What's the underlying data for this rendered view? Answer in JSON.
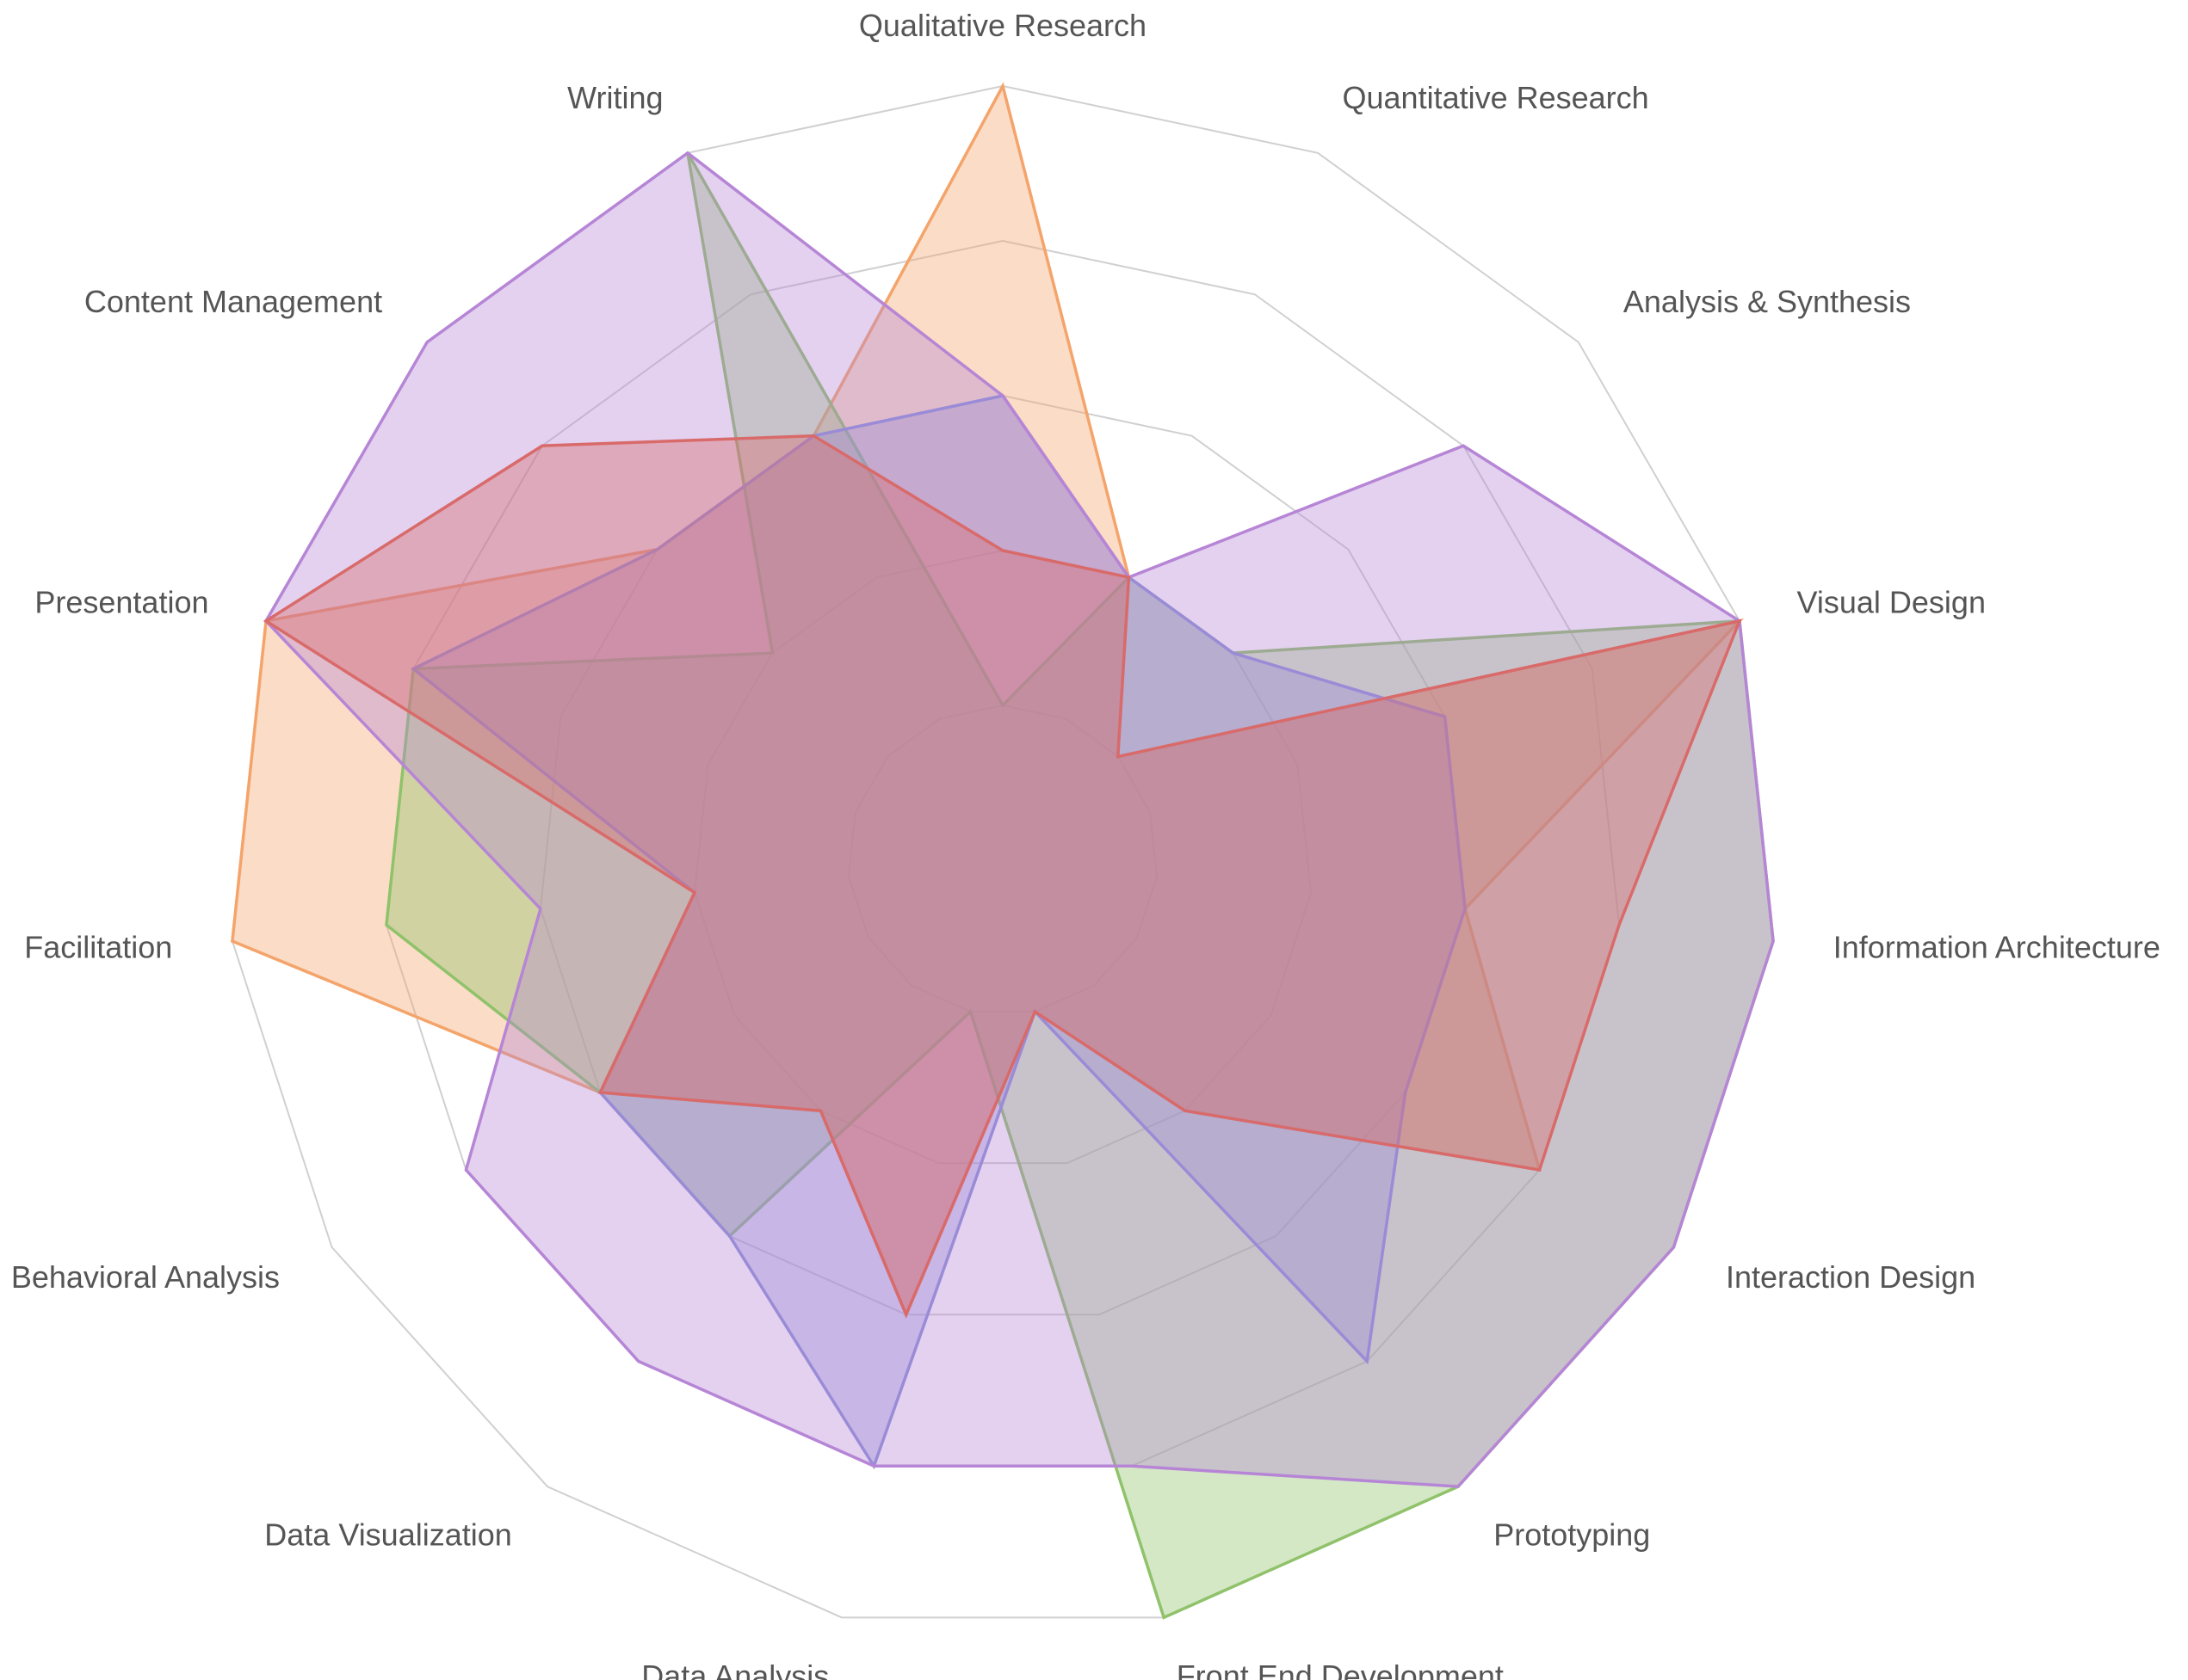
{
  "chart_data": {
    "type": "radar",
    "title": "",
    "categories": [
      "Qualitative Research",
      "Quantitative Research",
      "Analysis & Synthesis",
      "Visual Design",
      "Information Architecture",
      "Interaction Design",
      "Prototyping",
      "Front End Development",
      "Data Analysis",
      "Data Visualization",
      "Behavioral Analysis",
      "Facilitation",
      "Presentation",
      "Content Management",
      "Writing"
    ],
    "rlim": [
      0,
      5
    ],
    "rings": 5,
    "grid": true,
    "legend": "none",
    "series": [
      {
        "color": "#F4A46A",
        "values": [
          5,
          2,
          1,
          5,
          3,
          4,
          2,
          1,
          3,
          2,
          3,
          5,
          5,
          3,
          3
        ]
      },
      {
        "color": "#8FC26A",
        "values": [
          1,
          2,
          2,
          5,
          5,
          5,
          5,
          5,
          1,
          3,
          3,
          4,
          4,
          2,
          5
        ]
      },
      {
        "color": "#8A8FD8",
        "values": [
          3,
          2,
          2,
          3,
          3,
          3,
          4,
          1,
          4,
          3,
          3,
          2,
          4,
          3,
          3
        ]
      },
      {
        "color": "#B685D6",
        "values": [
          3,
          2,
          4,
          5,
          5,
          5,
          5,
          4,
          4,
          4,
          4,
          3,
          5,
          5,
          5
        ]
      },
      {
        "color": "#D96A6A",
        "values": [
          2,
          2,
          1,
          5,
          4,
          4,
          2,
          1,
          3,
          2,
          3,
          2,
          5,
          4,
          3
        ]
      }
    ]
  }
}
